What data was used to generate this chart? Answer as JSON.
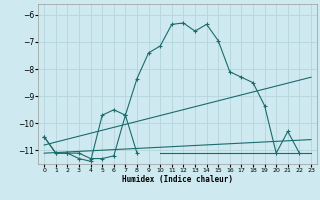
{
  "xlabel": "Humidex (Indice chaleur)",
  "bg_color": "#ceeaf0",
  "grid_color": "#b8d8de",
  "line_color": "#1a6b6b",
  "xlim": [
    -0.5,
    23.5
  ],
  "ylim": [
    -11.5,
    -5.6
  ],
  "yticks": [
    -11,
    -10,
    -9,
    -8,
    -7,
    -6
  ],
  "xticks": [
    0,
    1,
    2,
    3,
    4,
    5,
    6,
    7,
    8,
    9,
    10,
    11,
    12,
    13,
    14,
    15,
    16,
    17,
    18,
    19,
    20,
    21,
    22,
    23
  ],
  "series1_x": [
    0,
    1,
    2,
    3,
    4,
    5,
    6,
    7,
    8,
    9,
    10,
    11,
    12,
    13,
    14,
    15,
    16,
    17,
    18,
    19,
    20,
    21,
    22
  ],
  "series1_y": [
    -10.5,
    -11.1,
    -11.1,
    -11.1,
    -11.3,
    -11.3,
    -11.2,
    -9.7,
    -8.35,
    -7.4,
    -7.15,
    -6.35,
    -6.3,
    -6.6,
    -6.35,
    -6.95,
    -8.1,
    -8.3,
    -8.5,
    -9.35,
    -11.1,
    -10.3,
    -11.1
  ],
  "series2_x": [
    0,
    1,
    2,
    3,
    4,
    5,
    6,
    7,
    8
  ],
  "series2_y": [
    -10.5,
    -11.1,
    -11.1,
    -11.3,
    -11.4,
    -9.7,
    -9.5,
    -9.7,
    -11.1
  ],
  "series2b_x": [
    10,
    11,
    12,
    13,
    14,
    15,
    16,
    17,
    18,
    19,
    20,
    21,
    22,
    23
  ],
  "series2b_y": [
    -11.1,
    -11.1,
    -11.1,
    -11.1,
    -11.1,
    -11.1,
    -11.1,
    -11.1,
    -11.1,
    -11.1,
    -11.1,
    -11.1,
    -11.1,
    -11.1
  ],
  "series3_x": [
    0,
    23
  ],
  "series3_y": [
    -10.8,
    -8.3
  ],
  "series4_x": [
    0,
    23
  ],
  "series4_y": [
    -11.1,
    -10.6
  ]
}
